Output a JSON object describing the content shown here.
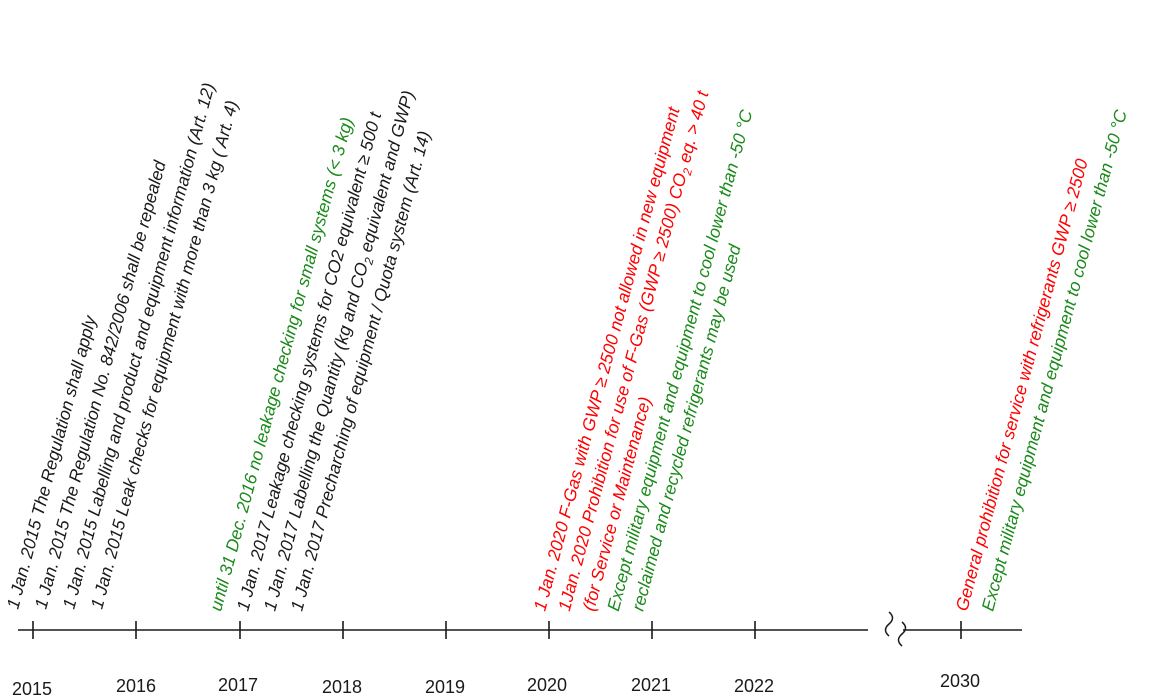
{
  "colors": {
    "black": "#1a1a1a",
    "red": "#ff0000",
    "green": "#1a8a1a"
  },
  "timeline": {
    "years": [
      "2015",
      "2016",
      "2017",
      "2018",
      "2019",
      "2020",
      "2021",
      "2022",
      "2030"
    ],
    "break_symbol": "≀≀"
  },
  "events": [
    {
      "year": "2015",
      "lines": [
        {
          "color": "black",
          "runs": [
            {
              "t": "1 Jan. 2015 The Regulation shall apply"
            }
          ]
        },
        {
          "color": "black",
          "runs": [
            {
              "t": "1 Jan. 2015 The Regulation No. 842/2006 shall be repealed"
            }
          ]
        },
        {
          "color": "black",
          "runs": [
            {
              "t": "1 Jan. 2015 Labelling and product and equipment information (Art. 12)"
            }
          ]
        },
        {
          "color": "black",
          "runs": [
            {
              "t": "1 Jan. 2015 Leak checks for equipment with more than 3 kg ( Art. 4)"
            }
          ]
        }
      ]
    },
    {
      "year": "2017",
      "lines": [
        {
          "color": "green",
          "runs": [
            {
              "t": "until 31 Dec. 2016 no leakage checking for small systems (< 3 kg)"
            }
          ]
        },
        {
          "color": "black",
          "runs": [
            {
              "t": "1 Jan. 2017 Leakage checking systems for CO2 equivalent ≥ 500 t"
            }
          ]
        },
        {
          "color": "black",
          "runs": [
            {
              "t": "1 Jan. 2017 Labelling the Quantity (kg and CO"
            },
            {
              "t": "2",
              "sub": true
            },
            {
              "t": " equivalent and GWP)"
            }
          ]
        },
        {
          "color": "black",
          "runs": [
            {
              "t": "1 Jan. 2017 Precharching of equipment / Quota system (Art. 14)"
            }
          ]
        }
      ]
    },
    {
      "year": "2020",
      "lines": [
        {
          "color": "red",
          "runs": [
            {
              "t": "1 Jan. 2020 F-Gas with GWP ≥ 2500 not allowed in new equipment"
            }
          ]
        },
        {
          "color": "red",
          "runs": [
            {
              "t": "1Jan. 2020 Prohibition for use of F-Gas (GWP ≥ 2500) CO"
            },
            {
              "t": "2",
              "sub": true
            },
            {
              "t": " eq. > 40 t"
            }
          ]
        },
        {
          "color": "red",
          "runs": [
            {
              "t": "(for Service or Maintenance)"
            }
          ]
        },
        {
          "color": "green",
          "runs": [
            {
              "t": "Except military equipment and equipment to cool lower than -50 °C"
            }
          ]
        },
        {
          "color": "green",
          "runs": [
            {
              "t": "reclaimed and recycled refrigerants may be used"
            }
          ]
        }
      ]
    },
    {
      "year": "2030",
      "lines": [
        {
          "color": "red",
          "runs": [
            {
              "t": "General prohibition for service with refrigerants GWP ≥ 2500"
            }
          ]
        },
        {
          "color": "green",
          "runs": [
            {
              "t": "Except military equipment and equipment to cool lower than -50 °C"
            }
          ]
        }
      ]
    }
  ]
}
